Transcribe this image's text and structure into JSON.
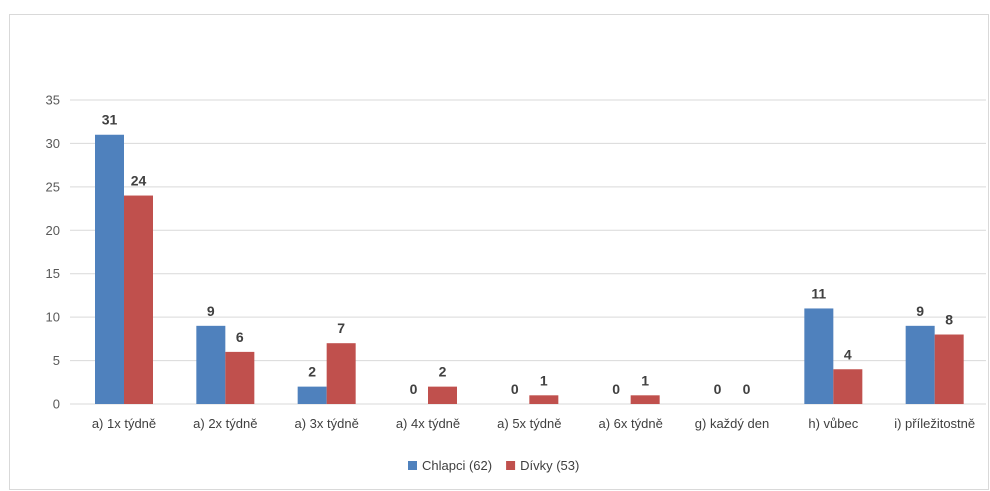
{
  "chart_data": {
    "type": "bar",
    "title": "",
    "xlabel": "",
    "ylabel": "",
    "ylim": [
      0,
      35
    ],
    "yticks": [
      0,
      5,
      10,
      15,
      20,
      25,
      30,
      35
    ],
    "grid": true,
    "legend_position": "bottom",
    "categories": [
      "a) 1x týdně",
      "a) 2x týdně",
      "a) 3x týdně",
      "a) 4x týdně",
      "a) 5x týdně",
      "a) 6x týdně",
      "g) každý den",
      "h) vůbec",
      "i) příležitostně"
    ],
    "series": [
      {
        "name": "Chlapci (62)",
        "color": "#4f81bd",
        "values": [
          31,
          9,
          2,
          0,
          0,
          0,
          0,
          11,
          9
        ]
      },
      {
        "name": "Dívky (53)",
        "color": "#c0504d",
        "values": [
          24,
          6,
          7,
          2,
          1,
          1,
          0,
          4,
          8
        ]
      }
    ]
  }
}
